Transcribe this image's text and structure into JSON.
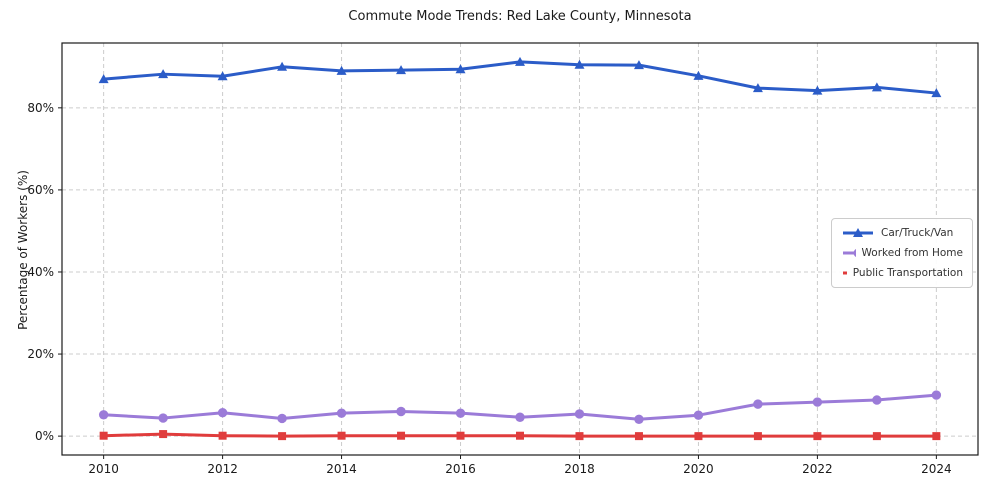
{
  "chart_data": {
    "type": "line",
    "title": "Commute Mode Trends: Red Lake County, Minnesota",
    "xlabel": "",
    "ylabel": "Percentage of Workers (%)",
    "x": [
      2010,
      2011,
      2012,
      2013,
      2014,
      2015,
      2016,
      2017,
      2018,
      2019,
      2020,
      2021,
      2022,
      2023,
      2024
    ],
    "xtick_values": [
      2010,
      2012,
      2014,
      2016,
      2018,
      2020,
      2022,
      2024
    ],
    "xtick_labels": [
      "2010",
      "2012",
      "2014",
      "2016",
      "2018",
      "2020",
      "2022",
      "2024"
    ],
    "ytick_values": [
      0,
      20,
      40,
      60,
      80
    ],
    "ytick_labels": [
      "0%",
      "20%",
      "40%",
      "60%",
      "80%"
    ],
    "xlim": [
      2009.3,
      2024.7
    ],
    "ylim": [
      -4.6,
      95.8
    ],
    "grid": true,
    "grid_style": "dashed",
    "legend_position": "center right",
    "series": [
      {
        "name": "Car/Truck/Van",
        "color": "#2b5cc8",
        "marker": "triangle-up",
        "values": [
          87.0,
          88.2,
          87.7,
          90.0,
          89.0,
          89.2,
          89.4,
          91.2,
          90.5,
          90.4,
          87.8,
          84.8,
          84.2,
          85.0,
          83.6
        ]
      },
      {
        "name": "Worked from Home",
        "color": "#9b7bd8",
        "marker": "circle",
        "values": [
          5.2,
          4.4,
          5.7,
          4.3,
          5.6,
          6.0,
          5.6,
          4.6,
          5.4,
          4.1,
          5.1,
          7.8,
          8.3,
          8.8,
          10.0
        ]
      },
      {
        "name": "Public Transportation",
        "color": "#e03c3c",
        "marker": "square",
        "values": [
          0.1,
          0.5,
          0.1,
          0.0,
          0.1,
          0.1,
          0.1,
          0.1,
          0.0,
          0.0,
          0.0,
          0.0,
          0.0,
          0.0,
          0.0
        ]
      }
    ]
  },
  "layout_colors": {
    "grid": "#cccccc",
    "spine": "#1a1a1a",
    "tick_text": "#1a1a1a"
  }
}
